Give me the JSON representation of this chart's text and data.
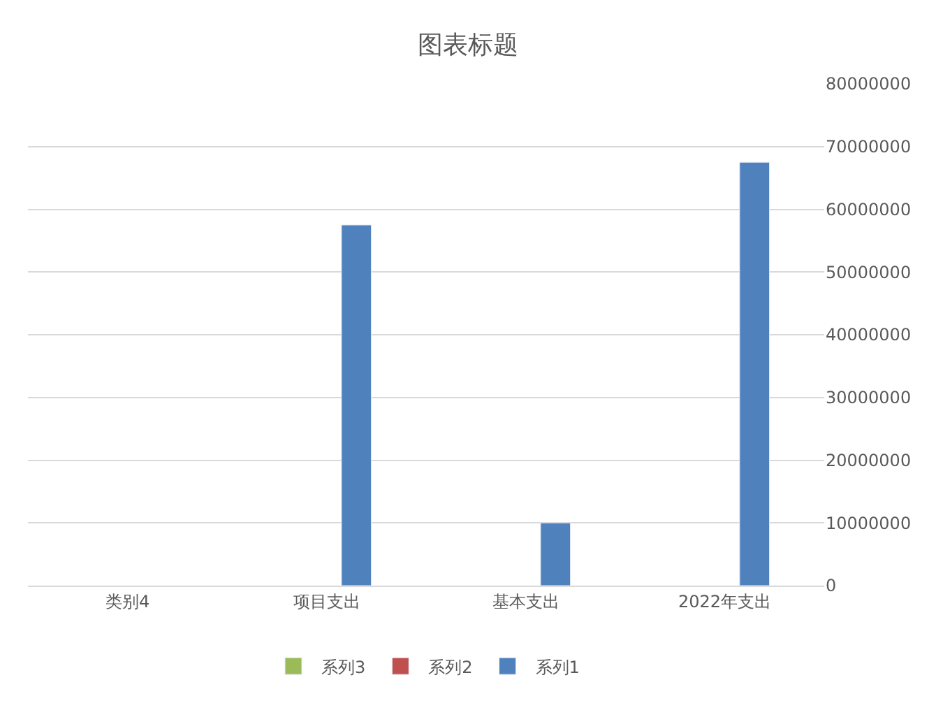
{
  "chart_data": {
    "type": "bar",
    "title": "图表标题",
    "categories": [
      "类别4",
      "项目支出",
      "基本支出",
      "2022年支出"
    ],
    "series": [
      {
        "name": "系列3",
        "color": "#9bbb59",
        "values": [
          null,
          null,
          null,
          null
        ]
      },
      {
        "name": "系列2",
        "color": "#c0504d",
        "values": [
          null,
          null,
          null,
          null
        ]
      },
      {
        "name": "系列1",
        "color": "#4f81bd",
        "values": [
          null,
          57500000,
          10000000,
          67500000
        ]
      }
    ],
    "ylim": [
      0,
      80000000
    ],
    "yticks": [
      0,
      10000000,
      20000000,
      30000000,
      40000000,
      50000000,
      60000000,
      70000000,
      80000000
    ],
    "grid": "y",
    "legend": "bottom"
  }
}
